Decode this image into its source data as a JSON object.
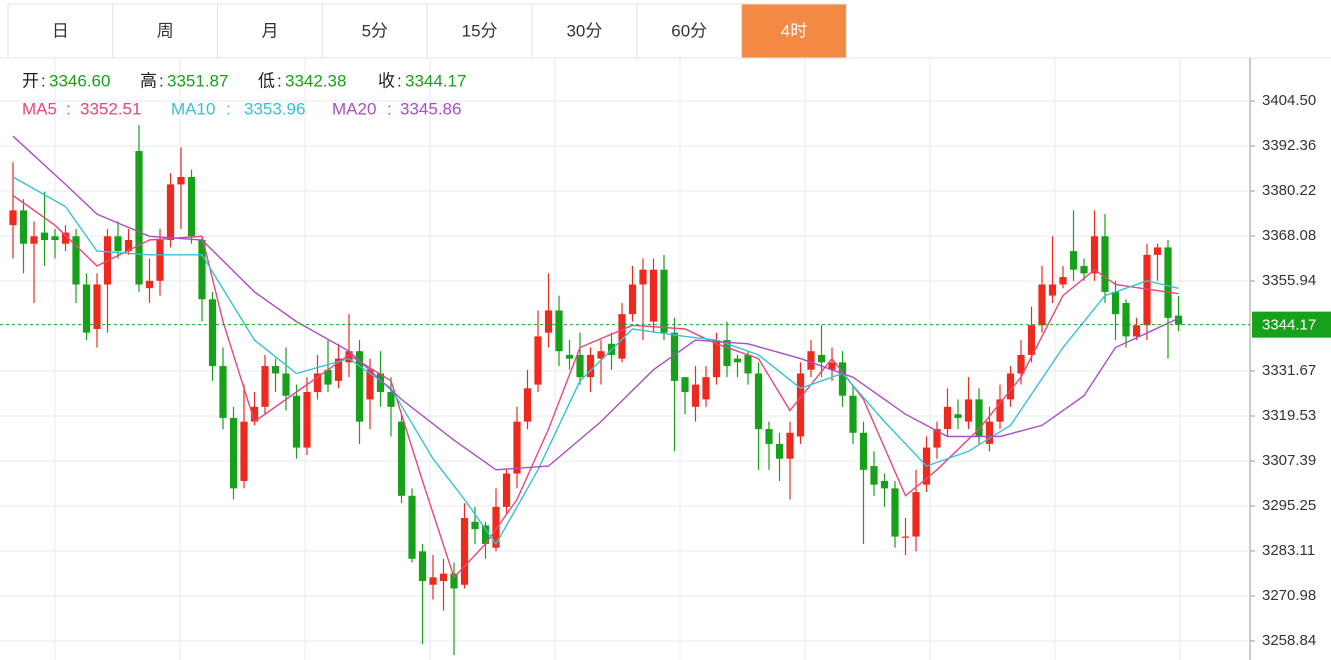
{
  "tabs": [
    "日",
    "周",
    "月",
    "5分",
    "15分",
    "30分",
    "60分",
    "4时"
  ],
  "active_tab": 7,
  "chart_data": {
    "type": "candlestick",
    "ohlc_labels": [
      "开",
      "高",
      "低",
      "收"
    ],
    "ohlc_value_labels": [
      "3346.60",
      "3351.87",
      "3342.38",
      "3344.17"
    ],
    "open": [
      3371,
      3375,
      3366,
      3369,
      3368,
      3366,
      3368,
      3355,
      3343,
      3355,
      3368,
      3364,
      3391,
      3354,
      3356,
      3367,
      3382,
      3384,
      3367,
      3351,
      3333,
      3319,
      3302,
      3318,
      3322,
      3333,
      3331,
      3325,
      3311,
      3326,
      3332,
      3329,
      3334,
      3337,
      3324,
      3331,
      3326,
      3318,
      3298,
      3283,
      3274,
      3275,
      3277,
      3274,
      3291,
      3290,
      3284,
      3295,
      3304,
      3318,
      3328,
      3342,
      3348,
      3336,
      3336,
      3330,
      3335,
      3339,
      3335,
      3347,
      3355,
      3345,
      3359,
      3342,
      3330,
      3322,
      3324,
      3330,
      3340,
      3335,
      3336,
      3331,
      3316,
      3312,
      3308,
      3314,
      3332,
      3336,
      3332,
      3334,
      3325,
      3315,
      3306,
      3302,
      3300,
      3287,
      3287,
      3301,
      3311,
      3316,
      3320,
      3318,
      3324,
      3312,
      3318,
      3324,
      3331,
      3336,
      3344,
      3352,
      3355,
      3364,
      3360,
      3358,
      3368,
      3353,
      3350,
      3341,
      3344,
      3363,
      3365,
      3346.6
    ],
    "high": [
      3388,
      3378,
      3372,
      3380,
      3370,
      3371,
      3370,
      3358,
      3358,
      3370,
      3372,
      3370,
      3398,
      3362,
      3370,
      3385,
      3392,
      3386,
      3368,
      3353,
      3338,
      3322,
      3328,
      3326,
      3336,
      3335,
      3338,
      3328,
      3330,
      3336,
      3340,
      3339,
      3347,
      3340,
      3335,
      3337,
      3330,
      3320,
      3300,
      3285,
      3282,
      3281,
      3280,
      3296,
      3295,
      3291,
      3300,
      3305,
      3322,
      3332,
      3348,
      3358,
      3352,
      3340,
      3342,
      3338,
      3340,
      3342,
      3350,
      3360,
      3362,
      3362,
      3363,
      3346,
      3330,
      3333,
      3333,
      3342,
      3345,
      3336,
      3337,
      3334,
      3318,
      3315,
      3318,
      3334,
      3340,
      3344,
      3338,
      3337,
      3328,
      3318,
      3310,
      3304,
      3302,
      3292,
      3305,
      3314,
      3318,
      3327,
      3324,
      3330,
      3327,
      3322,
      3328,
      3333,
      3340,
      3349,
      3360,
      3368,
      3360,
      3375,
      3362,
      3375,
      3374,
      3356,
      3351,
      3346,
      3366,
      3366,
      3367,
      3351.87
    ],
    "low": [
      3362,
      3358,
      3350,
      3360,
      3362,
      3364,
      3350,
      3340,
      3338,
      3342,
      3362,
      3363,
      3353,
      3350,
      3352,
      3365,
      3370,
      3366,
      3345,
      3329,
      3316,
      3297,
      3300,
      3317,
      3320,
      3326,
      3321,
      3308,
      3309,
      3324,
      3326,
      3327,
      3330,
      3312,
      3316,
      3322,
      3314,
      3296,
      3280,
      3258,
      3270,
      3267,
      3255,
      3273,
      3285,
      3281,
      3283,
      3293,
      3300,
      3316,
      3326,
      3338,
      3333,
      3332,
      3328,
      3326,
      3328,
      3332,
      3334,
      3345,
      3340,
      3342,
      3340,
      3310,
      3320,
      3318,
      3322,
      3328,
      3330,
      3330,
      3328,
      3305,
      3305,
      3302,
      3297,
      3312,
      3330,
      3330,
      3329,
      3322,
      3312,
      3285,
      3298,
      3295,
      3284,
      3282,
      3283,
      3299,
      3308,
      3314,
      3316,
      3316,
      3312,
      3310,
      3316,
      3322,
      3328,
      3334,
      3342,
      3350,
      3354,
      3356,
      3356,
      3356,
      3350,
      3340,
      3338,
      3340,
      3340,
      3356,
      3335,
      3342.38
    ],
    "close": [
      3375,
      3366,
      3368,
      3367,
      3367,
      3369,
      3355,
      3342,
      3355,
      3368,
      3364,
      3367,
      3355,
      3356,
      3367,
      3382,
      3384,
      3368,
      3351,
      3333,
      3319,
      3300,
      3318,
      3322,
      3333,
      3331,
      3325,
      3311,
      3326,
      3331,
      3328,
      3335,
      3337,
      3318,
      3332,
      3326,
      3322,
      3298,
      3281,
      3275,
      3276,
      3277,
      3273,
      3292,
      3289,
      3285,
      3295,
      3304,
      3318,
      3327,
      3341,
      3348,
      3337,
      3335,
      3330,
      3336,
      3337,
      3336,
      3347,
      3355,
      3359,
      3359,
      3342,
      3329,
      3326,
      3328,
      3330,
      3340,
      3333,
      3334,
      3331,
      3316,
      3312,
      3308,
      3315,
      3331,
      3337,
      3334,
      3334,
      3325,
      3315,
      3305,
      3301,
      3300,
      3287,
      3287,
      3299,
      3311,
      3316,
      3322,
      3319,
      3324,
      3314,
      3318,
      3324,
      3331,
      3336,
      3344,
      3355,
      3355,
      3357,
      3359,
      3358,
      3368,
      3353,
      3347,
      3341,
      3344,
      3363,
      3365,
      3346,
      3344.17
    ],
    "up_color": "#ee2a1e",
    "down_color": "#17a01a",
    "series": [
      {
        "name": "MA5",
        "latest": "3352.51",
        "color": "#e8467c",
        "x": [
          0,
          4,
          8,
          13,
          18,
          20,
          23,
          27,
          32,
          36,
          39,
          42,
          45,
          48,
          51,
          54,
          59,
          64,
          67,
          71,
          74,
          78,
          81,
          85,
          88,
          92,
          96,
          100,
          103,
          105,
          111
        ],
        "values": [
          3379,
          3371,
          3360,
          3367,
          3368,
          3345,
          3318,
          3326,
          3336,
          3329,
          3302,
          3276,
          3285,
          3297,
          3316,
          3338,
          3344,
          3343,
          3339,
          3335,
          3321,
          3335,
          3324,
          3298,
          3305,
          3316,
          3330,
          3352,
          3359,
          3355,
          3352.51
        ]
      },
      {
        "name": "MA10",
        "latest": "3353.96",
        "color": "#36c2d2",
        "x": [
          0,
          5,
          8,
          13,
          18,
          23,
          27,
          32,
          36,
          40,
          43,
          46,
          50,
          54,
          59,
          64,
          67,
          71,
          75,
          79,
          83,
          87,
          91,
          95,
          100,
          104,
          108,
          111
        ],
        "values": [
          3384,
          3376,
          3364,
          3363,
          3363,
          3340,
          3331,
          3335,
          3327,
          3308,
          3297,
          3285,
          3305,
          3329,
          3343,
          3341,
          3340,
          3336,
          3327,
          3331,
          3318,
          3306,
          3310,
          3317,
          3338,
          3352,
          3356,
          3353.96
        ]
      },
      {
        "name": "MA20",
        "latest": "3345.86",
        "color": "#a94fc2",
        "x": [
          0,
          5,
          8,
          13,
          18,
          23,
          27,
          32,
          37,
          42,
          46,
          51,
          56,
          61,
          65,
          70,
          75,
          80,
          85,
          89,
          94,
          98,
          102,
          105,
          111
        ],
        "values": [
          3395,
          3382,
          3374,
          3368,
          3367,
          3353,
          3345,
          3337,
          3324,
          3313,
          3305,
          3306,
          3318,
          3332,
          3340,
          3339,
          3335,
          3330,
          3320,
          3314,
          3314,
          3317,
          3325,
          3338,
          3345.86
        ]
      }
    ],
    "current_price": {
      "value": 3344.17,
      "label": "3344.17"
    },
    "ylim": [
      3253.7,
      3416.1
    ],
    "yticks": [
      3258.84,
      3270.98,
      3283.11,
      3295.25,
      3307.39,
      3319.53,
      3331.67,
      3355.94,
      3368.08,
      3380.22,
      3392.36,
      {
        "value": 3404.5,
        "label": "3404.50"
      }
    ],
    "grid": true
  }
}
